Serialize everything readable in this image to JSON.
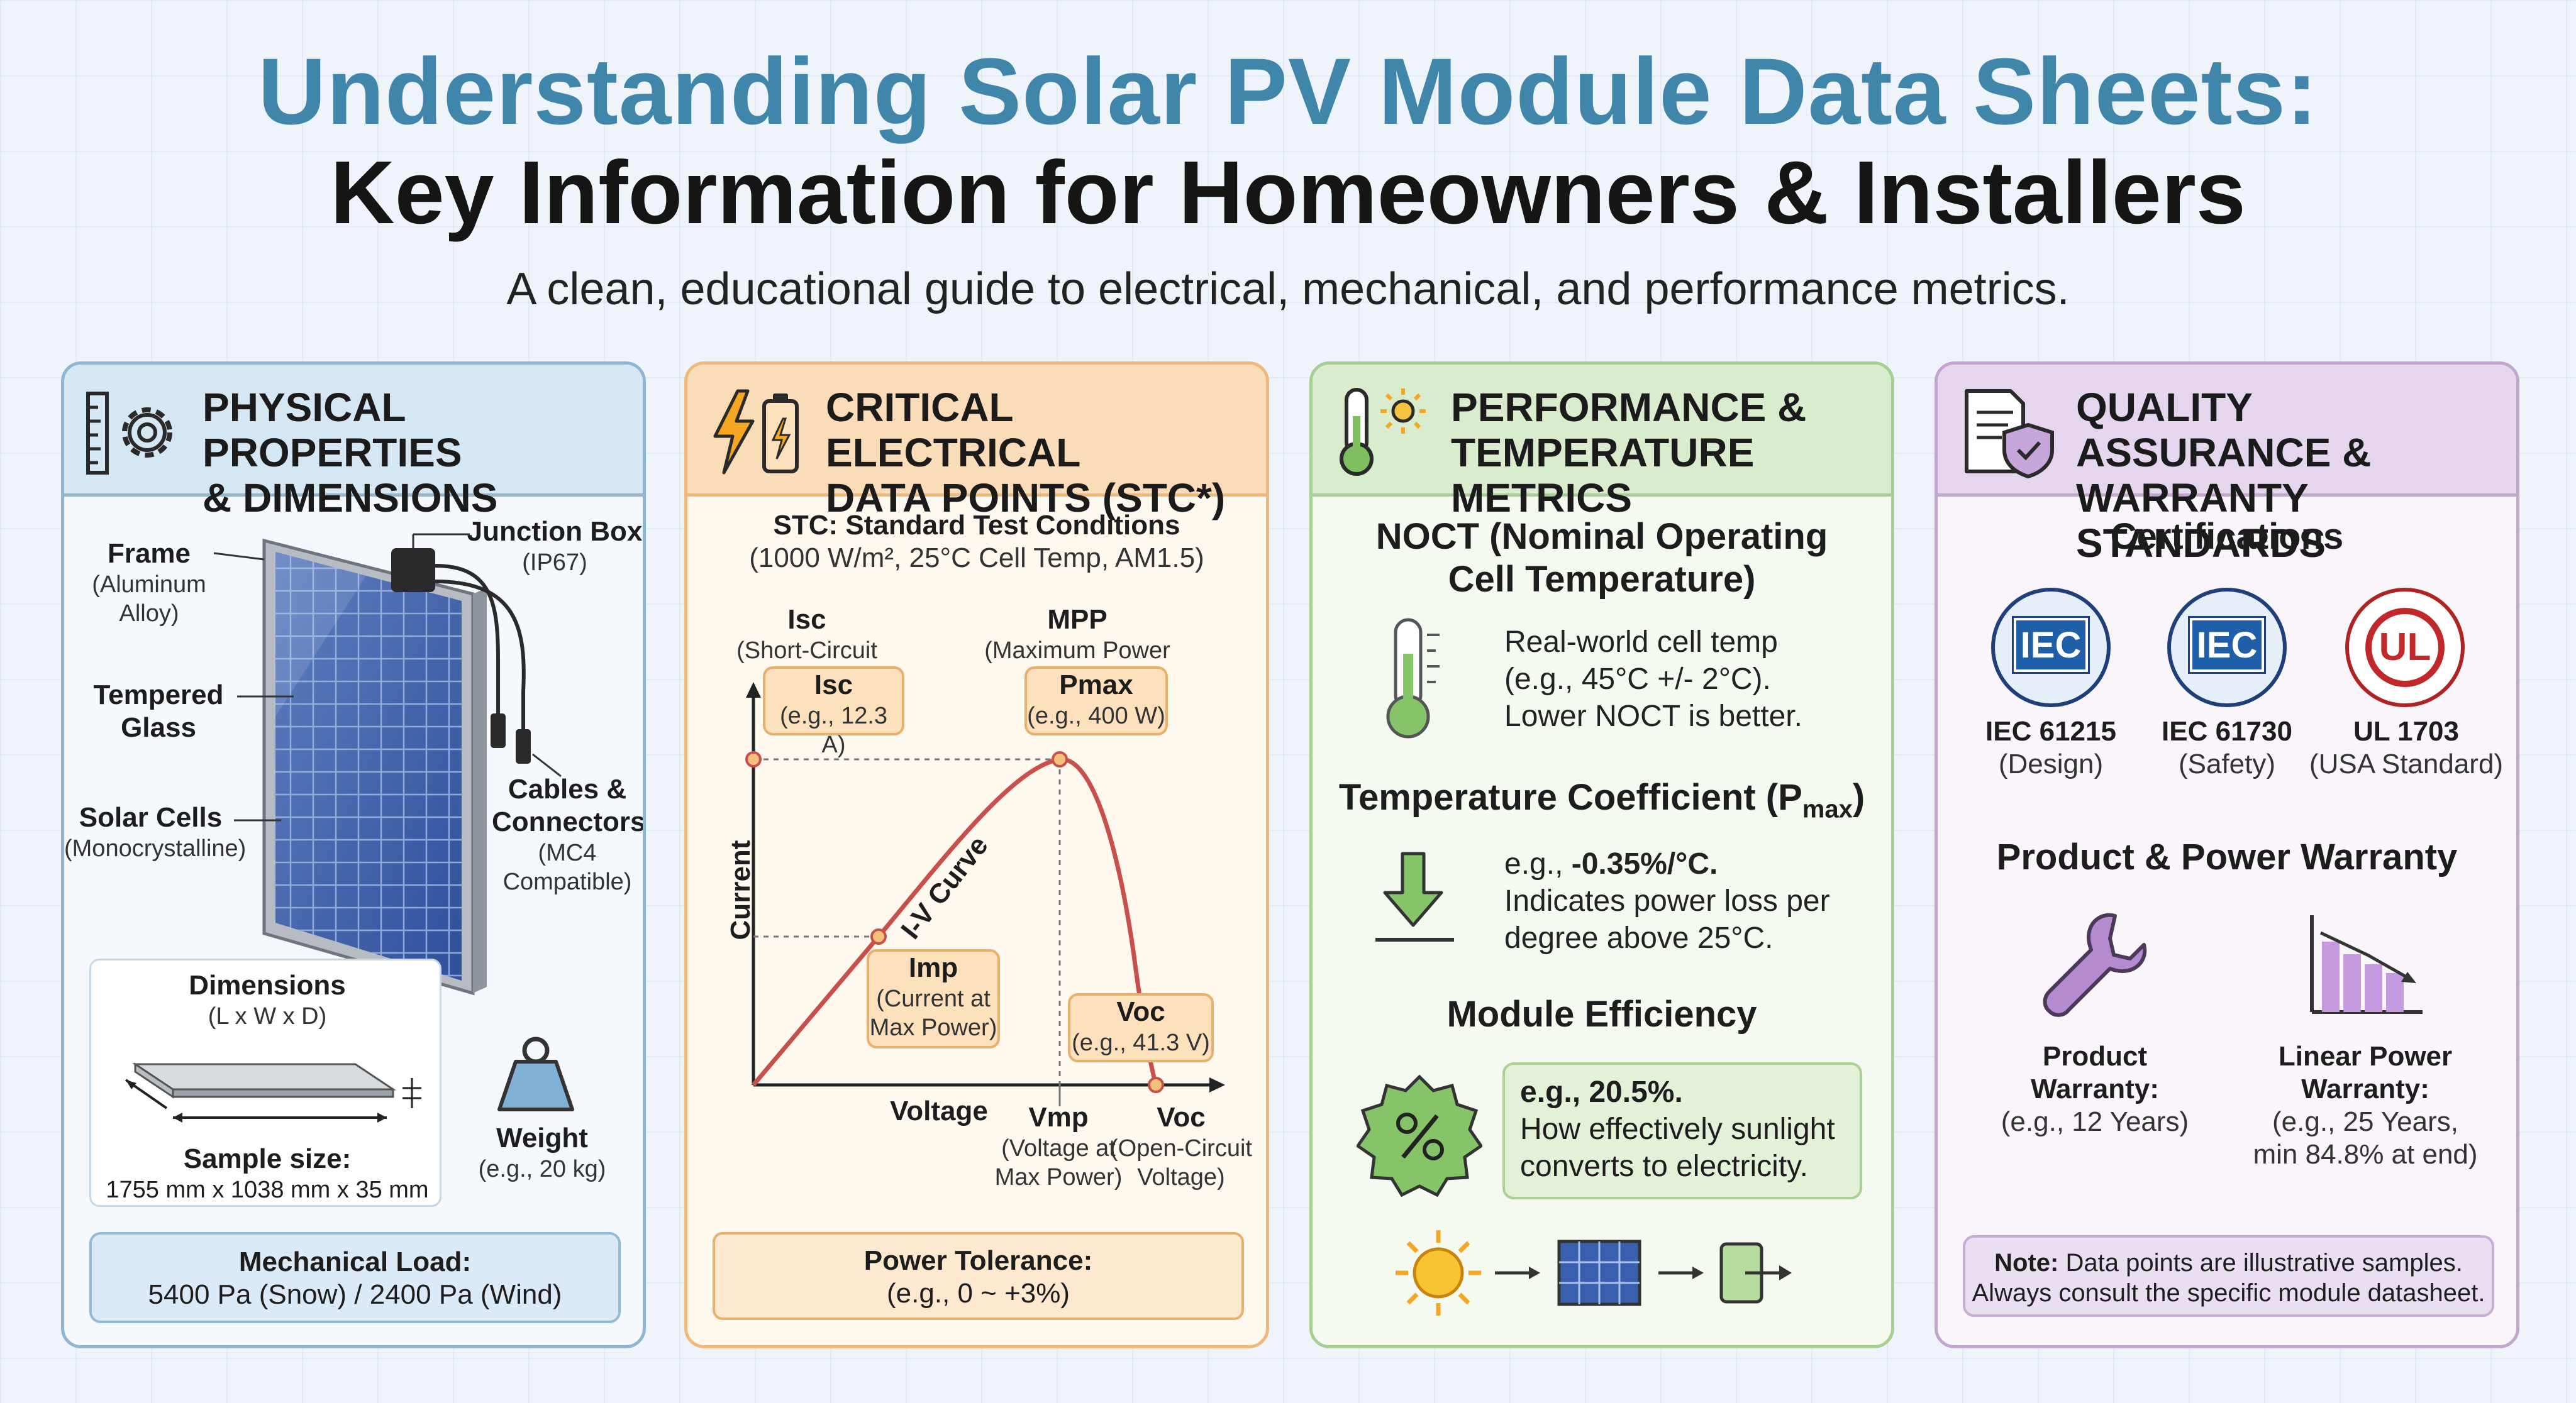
{
  "header": {
    "title_line1": "Understanding Solar PV Module Data Sheets:",
    "title_line2": "Key Information for Homeowners & Installers",
    "subtitle": "A clean, educational guide to electrical, mechanical, and performance metrics."
  },
  "colors": {
    "blue_accent": "#3f86aa",
    "physical": "#8eb6d3",
    "electrical": "#f0b979",
    "performance": "#a6cf92",
    "quality": "#c2a6cf",
    "curve": "#c8504a"
  },
  "physical": {
    "title_l1": "PHYSICAL PROPERTIES",
    "title_l2": "& DIMENSIONS",
    "icon": "ruler-gear-icon",
    "frame": "Frame",
    "frame_sub": "(Aluminum Alloy)",
    "glass_l1": "Tempered",
    "glass_l2": "Glass",
    "cells": "Solar Cells",
    "cells_sub": "(Monocrystalline)",
    "jbox": "Junction Box",
    "jbox_sub": "(IP67)",
    "cables_l1": "Cables &",
    "cables_l2": "Connectors",
    "cables_sub1": "(MC4",
    "cables_sub2": "Compatible)",
    "dims_title": "Dimensions",
    "dims_sub": "(L x W x D)",
    "sample_label": "Sample size:",
    "sample_value": "1755 mm x 1038 mm x 35 mm",
    "weight": "Weight",
    "weight_sub": "(e.g., 20 kg)",
    "load_title": "Mechanical Load:",
    "load_value": "5400 Pa (Snow) / 2400 Pa (Wind)"
  },
  "electrical": {
    "title_l1": "CRITICAL ELECTRICAL",
    "title_l2": "DATA POINTS (STC*)",
    "icon": "bolt-battery-icon",
    "stc_title": "STC: Standard Test Conditions",
    "stc_sub": "(1000 W/m², 25°C Cell Temp, AM1.5)",
    "isc_head": "Isc",
    "isc_head_sub": "(Short-Circuit Current)",
    "mpp_head": "MPP",
    "mpp_head_sub": "(Maximum Power Point)",
    "isc_box": "Isc",
    "isc_box_sub": "(e.g., 12.3 A)",
    "pmax_box": "Pmax",
    "pmax_box_sub": "(e.g., 400 W)",
    "imp_box": "Imp",
    "imp_box_sub1": "(Current at",
    "imp_box_sub2": "Max Power)",
    "voc_box": "Voc",
    "voc_box_sub": "(e.g., 41.3 V)",
    "curve_label": "I-V Curve",
    "y_axis": "Current",
    "x_axis": "Voltage",
    "vmp": "Vmp",
    "vmp_sub1": "(Voltage at",
    "vmp_sub2": "Max Power)",
    "voc": "Voc",
    "voc_sub1": "(Open-Circuit",
    "voc_sub2": "Voltage)",
    "tol_title": "Power Tolerance:",
    "tol_value": "(e.g., 0 ~ +3%)"
  },
  "performance": {
    "title_l1": "PERFORMANCE &",
    "title_l2": "TEMPERATURE METRICS",
    "icon": "thermometer-sun-icon",
    "noct_title_l1": "NOCT (Nominal Operating",
    "noct_title_l2": "Cell Temperature)",
    "noct_l1": "Real-world cell temp",
    "noct_l2": "(e.g., 45°C +/- 2°C).",
    "noct_l3": "Lower NOCT is better.",
    "tc_title": "Temperature Coefficient (P",
    "tc_sub": "max",
    "tc_close": ")",
    "tc_prefix": "e.g., ",
    "tc_value": "-0.35%/°C.",
    "tc_l2": "Indicates power loss per",
    "tc_l3": "degree above 25°C.",
    "eff_title": "Module Efficiency",
    "eff_value": "e.g., 20.5%.",
    "eff_l2": "How effectively sunlight",
    "eff_l3": "converts to electricity."
  },
  "quality": {
    "title_l1": "QUALITY ASSURANCE &",
    "title_l2": "WARRANTY STANDARDS",
    "icon": "document-shield-icon",
    "cert_title": "Certifications",
    "certs": [
      {
        "badge": "IEC",
        "name": "IEC 61215",
        "sub": "(Design)"
      },
      {
        "badge": "IEC",
        "name": "IEC 61730",
        "sub": "(Safety)"
      },
      {
        "badge": "UL",
        "name": "UL 1703",
        "sub": "(USA Standard)"
      }
    ],
    "warranty_title": "Product & Power Warranty",
    "product_l1": "Product",
    "product_l2": "Warranty:",
    "product_sub": "(e.g., 12 Years)",
    "linear_l1": "Linear Power",
    "linear_l2": "Warranty:",
    "linear_sub1": "(e.g., 25 Years,",
    "linear_sub2": "min 84.8% at end)",
    "note_label": "Note:",
    "note_l1": " Data points are illustrative samples.",
    "note_l2": "Always consult the specific module datasheet."
  }
}
